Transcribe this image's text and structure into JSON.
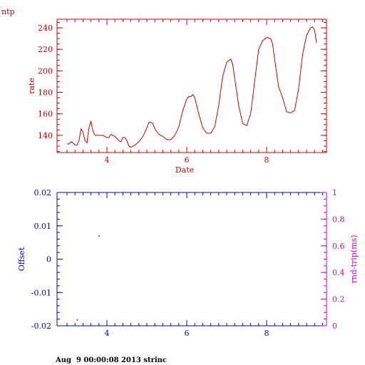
{
  "corner_label": "ntp",
  "footer": "Aug  9 00:00:08 2013 strinc",
  "colors": {
    "rate": "#cc0000",
    "offset": "#0000cc",
    "rtt": "#cc00cc"
  },
  "chart_data": [
    {
      "type": "line",
      "xlabel": "Date",
      "ylabel": "rate",
      "xlim": [
        2.75,
        9.5
      ],
      "ylim": [
        124,
        248
      ],
      "xticks": [
        4,
        6,
        8
      ],
      "yticks": [
        140,
        160,
        180,
        200,
        220,
        240
      ],
      "series": [
        {
          "x": [
            3.0,
            3.05,
            3.1,
            3.15,
            3.2,
            3.25,
            3.3,
            3.35,
            3.4,
            3.45,
            3.5,
            3.55,
            3.6,
            3.65,
            3.7,
            3.75,
            3.8,
            3.9,
            4.0,
            4.05,
            4.1,
            4.2,
            4.3,
            4.35,
            4.4,
            4.45,
            4.5,
            4.55,
            4.6,
            4.7,
            4.8,
            4.9,
            5.0,
            5.05,
            5.1,
            5.15,
            5.2,
            5.3,
            5.4,
            5.5,
            5.6,
            5.7,
            5.8,
            5.9,
            6.0,
            6.05,
            6.1,
            6.15,
            6.2,
            6.3,
            6.4,
            6.5,
            6.6,
            6.7,
            6.8,
            6.9,
            7.0,
            7.1,
            7.15,
            7.2,
            7.3,
            7.4,
            7.5,
            7.6,
            7.7,
            7.8,
            7.9,
            8.0,
            8.1,
            8.15,
            8.2,
            8.3,
            8.4,
            8.5,
            8.6,
            8.7,
            8.8,
            8.9,
            9.0,
            9.1,
            9.15,
            9.2,
            9.25
          ],
          "y": [
            132,
            132,
            134,
            133,
            131,
            131,
            135,
            146,
            143,
            135,
            133,
            147,
            153,
            144,
            140,
            140,
            140,
            140,
            138,
            138,
            141,
            139,
            135,
            134,
            138,
            138,
            135,
            130,
            129,
            131,
            134,
            139,
            147,
            152,
            152,
            151,
            146,
            141,
            139,
            136,
            136,
            140,
            148,
            163,
            174,
            176,
            176,
            178,
            175,
            160,
            147,
            142,
            142,
            148,
            168,
            195,
            208,
            211,
            206,
            193,
            168,
            151,
            149,
            160,
            190,
            220,
            228,
            231,
            230,
            225,
            211,
            185,
            175,
            162,
            161,
            163,
            183,
            215,
            233,
            240,
            241,
            238,
            226
          ]
        }
      ]
    },
    {
      "type": "scatter",
      "xlabel": "",
      "ylabel": "Offset",
      "y2label": "rnd-trip(ms)",
      "xlim": [
        2.75,
        9.5
      ],
      "ylim": [
        -0.02,
        0.02
      ],
      "y2lim": [
        0,
        1
      ],
      "xticks": [
        4,
        6,
        8
      ],
      "yticks": [
        -0.02,
        -0.01,
        0,
        0.01,
        0.02
      ],
      "ytick_labels": [
        "-0.02",
        "-0.01",
        "0",
        "0.01",
        "0.02"
      ],
      "y2ticks": [
        0,
        0.2,
        0.4,
        0.6,
        0.8,
        1
      ],
      "y2tick_labels": [
        "0",
        "0.2",
        "0.4",
        "0.6",
        "0.8",
        "1"
      ],
      "series": [
        {
          "x": [
            3.25,
            3.8
          ],
          "y": [
            -0.0182,
            0.007
          ]
        }
      ]
    }
  ]
}
